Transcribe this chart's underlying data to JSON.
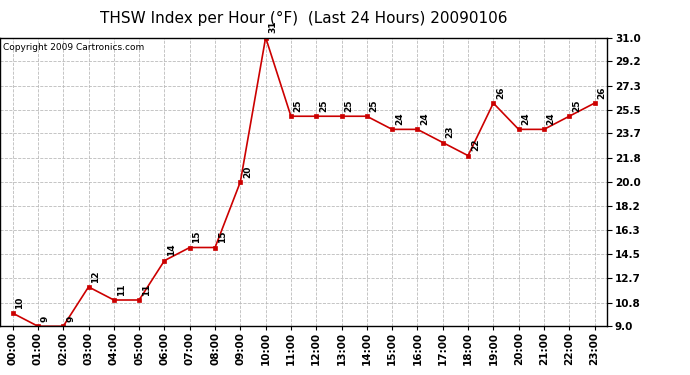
{
  "title": "THSW Index per Hour (°F)  (Last 24 Hours) 20090106",
  "copyright": "Copyright 2009 Cartronics.com",
  "hours": [
    "00:00",
    "01:00",
    "02:00",
    "03:00",
    "04:00",
    "05:00",
    "06:00",
    "07:00",
    "08:00",
    "09:00",
    "10:00",
    "11:00",
    "12:00",
    "13:00",
    "14:00",
    "15:00",
    "16:00",
    "17:00",
    "18:00",
    "19:00",
    "20:00",
    "21:00",
    "22:00",
    "23:00"
  ],
  "values": [
    10,
    9,
    9,
    12,
    11,
    11,
    14,
    15,
    15,
    20,
    31,
    25,
    25,
    25,
    25,
    24,
    24,
    23,
    22,
    26,
    24,
    24,
    25,
    26
  ],
  "line_color": "#cc0000",
  "marker_color": "#cc0000",
  "bg_color": "#ffffff",
  "grid_color": "#bbbbbb",
  "ylim_min": 9.0,
  "ylim_max": 31.0,
  "yticks": [
    9.0,
    10.8,
    12.7,
    14.5,
    16.3,
    18.2,
    20.0,
    21.8,
    23.7,
    25.5,
    27.3,
    29.2,
    31.0
  ],
  "title_fontsize": 11,
  "label_fontsize": 6.5,
  "tick_fontsize": 7.5,
  "copyright_fontsize": 6.5
}
